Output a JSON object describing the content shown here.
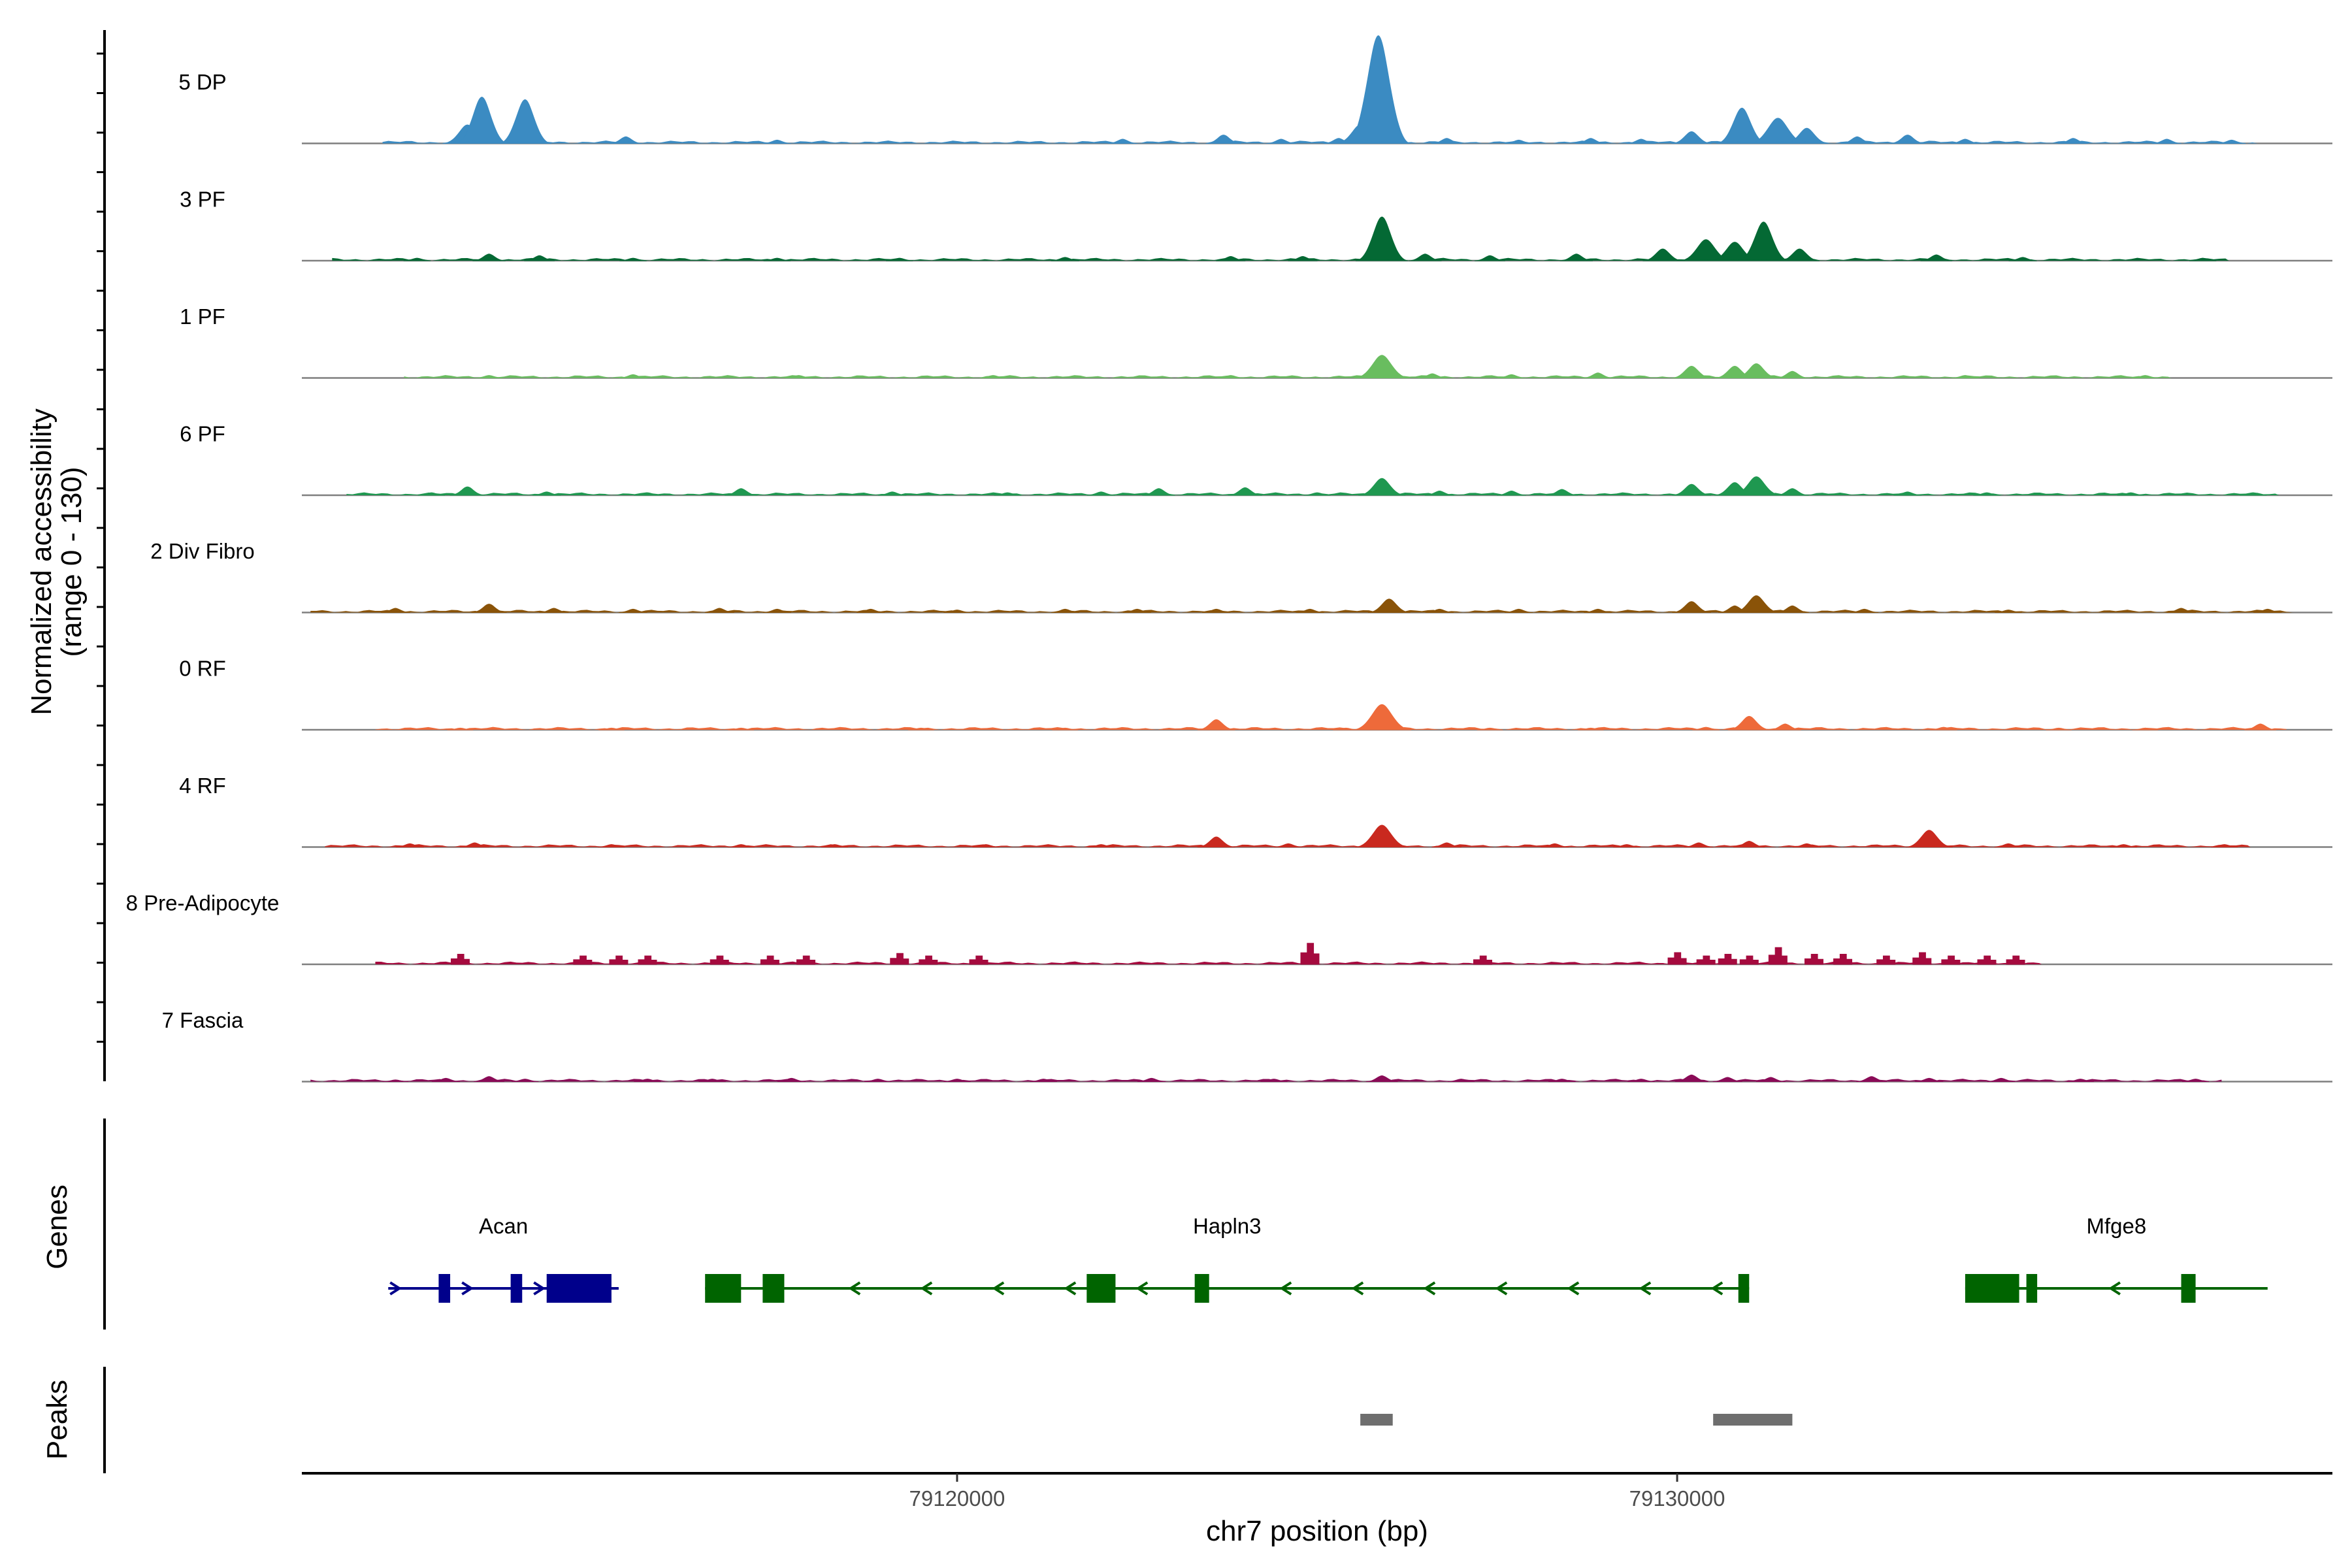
{
  "chart_data": {
    "type": "area",
    "title": "",
    "ylabel_line1": "Normalized accessibility",
    "ylabel_line2": "(range 0 - 130)",
    "y_range": [
      0,
      130
    ],
    "xlabel": "chr7 position (bp)",
    "x_range": [
      79110900,
      79139100
    ],
    "x_ticks": [
      {
        "value": 79120000,
        "label": "79120000"
      },
      {
        "value": 79130000,
        "label": "79130000"
      }
    ],
    "tracks": [
      {
        "name": "5 DP",
        "color": "#3b8bc2",
        "peaks": [
          [
            79113200,
            22
          ],
          [
            79113400,
            55
          ],
          [
            79114000,
            52
          ],
          [
            79115400,
            8
          ],
          [
            79117500,
            4
          ],
          [
            79122300,
            5
          ],
          [
            79123700,
            10
          ],
          [
            79124500,
            5
          ],
          [
            79125300,
            6
          ],
          [
            79125600,
            22
          ],
          [
            79125850,
            128
          ],
          [
            79126800,
            6
          ],
          [
            79127800,
            4
          ],
          [
            79128800,
            6
          ],
          [
            79129500,
            5
          ],
          [
            79130200,
            14
          ],
          [
            79130900,
            42
          ],
          [
            79131400,
            30
          ],
          [
            79131800,
            18
          ],
          [
            79132500,
            8
          ],
          [
            79133200,
            10
          ],
          [
            79134000,
            5
          ],
          [
            79135500,
            6
          ],
          [
            79136800,
            5
          ],
          [
            79137700,
            4
          ]
        ]
      },
      {
        "name": "3 PF",
        "color": "#046934",
        "peaks": [
          [
            79112500,
            3
          ],
          [
            79113500,
            8
          ],
          [
            79114200,
            6
          ],
          [
            79115500,
            3
          ],
          [
            79117500,
            3
          ],
          [
            79119200,
            3
          ],
          [
            79121500,
            4
          ],
          [
            79123800,
            5
          ],
          [
            79124800,
            5
          ],
          [
            79125900,
            52
          ],
          [
            79126500,
            8
          ],
          [
            79127400,
            6
          ],
          [
            79128600,
            8
          ],
          [
            79129800,
            14
          ],
          [
            79130400,
            25
          ],
          [
            79130800,
            22
          ],
          [
            79131200,
            46
          ],
          [
            79131700,
            14
          ],
          [
            79133600,
            7
          ],
          [
            79134800,
            4
          ],
          [
            79137300,
            3
          ]
        ]
      },
      {
        "name": "1 PF",
        "color": "#69bd5f",
        "peaks": [
          [
            79113500,
            3
          ],
          [
            79115500,
            4
          ],
          [
            79117800,
            3
          ],
          [
            79120500,
            3
          ],
          [
            79123800,
            3
          ],
          [
            79125900,
            27
          ],
          [
            79126600,
            5
          ],
          [
            79127700,
            4
          ],
          [
            79128900,
            6
          ],
          [
            79130200,
            14
          ],
          [
            79130800,
            14
          ],
          [
            79131100,
            17
          ],
          [
            79131600,
            8
          ],
          [
            79134000,
            3
          ],
          [
            79136500,
            3
          ]
        ]
      },
      {
        "name": "6 PF",
        "color": "#1f9850",
        "peaks": [
          [
            79112700,
            3
          ],
          [
            79113200,
            10
          ],
          [
            79114300,
            4
          ],
          [
            79115700,
            3
          ],
          [
            79117000,
            8
          ],
          [
            79119100,
            4
          ],
          [
            79120700,
            3
          ],
          [
            79122000,
            4
          ],
          [
            79122800,
            8
          ],
          [
            79124000,
            9
          ],
          [
            79125000,
            3
          ],
          [
            79125900,
            20
          ],
          [
            79126700,
            5
          ],
          [
            79127700,
            5
          ],
          [
            79128400,
            7
          ],
          [
            79130200,
            13
          ],
          [
            79130800,
            15
          ],
          [
            79131100,
            22
          ],
          [
            79131600,
            8
          ],
          [
            79133200,
            4
          ],
          [
            79134300,
            3
          ],
          [
            79136300,
            3
          ],
          [
            79138000,
            3
          ]
        ]
      },
      {
        "name": "2 Div Fibro",
        "color": "#8a5308",
        "peaks": [
          [
            79112200,
            5
          ],
          [
            79113500,
            10
          ],
          [
            79114400,
            5
          ],
          [
            79115500,
            4
          ],
          [
            79116700,
            5
          ],
          [
            79117500,
            4
          ],
          [
            79118800,
            4
          ],
          [
            79120000,
            3
          ],
          [
            79121500,
            4
          ],
          [
            79122500,
            4
          ],
          [
            79123600,
            4
          ],
          [
            79124900,
            4
          ],
          [
            79126000,
            16
          ],
          [
            79126700,
            4
          ],
          [
            79127800,
            4
          ],
          [
            79128900,
            4
          ],
          [
            79130200,
            13
          ],
          [
            79130800,
            8
          ],
          [
            79131100,
            20
          ],
          [
            79131600,
            8
          ],
          [
            79132600,
            4
          ],
          [
            79134600,
            3
          ],
          [
            79137000,
            5
          ],
          [
            79138200,
            4
          ]
        ]
      },
      {
        "name": "0 RF",
        "color": "#ee6a3a",
        "peaks": [
          [
            79113100,
            2
          ],
          [
            79115200,
            2
          ],
          [
            79117000,
            2
          ],
          [
            79119500,
            2
          ],
          [
            79121500,
            2
          ],
          [
            79123600,
            12
          ],
          [
            79125400,
            2
          ],
          [
            79125900,
            30
          ],
          [
            79127400,
            2
          ],
          [
            79128800,
            2
          ],
          [
            79130400,
            3
          ],
          [
            79131000,
            16
          ],
          [
            79131500,
            7
          ],
          [
            79133700,
            3
          ],
          [
            79135300,
            2
          ],
          [
            79136500,
            2
          ],
          [
            79138100,
            7
          ]
        ]
      },
      {
        "name": "4 RF",
        "color": "#c9291f",
        "peaks": [
          [
            79112400,
            4
          ],
          [
            79113300,
            5
          ],
          [
            79115200,
            3
          ],
          [
            79117000,
            3
          ],
          [
            79118300,
            3
          ],
          [
            79120400,
            3
          ],
          [
            79122000,
            3
          ],
          [
            79123600,
            12
          ],
          [
            79124600,
            4
          ],
          [
            79125900,
            26
          ],
          [
            79126800,
            5
          ],
          [
            79128300,
            4
          ],
          [
            79129300,
            3
          ],
          [
            79130300,
            5
          ],
          [
            79131000,
            7
          ],
          [
            79131800,
            4
          ],
          [
            79133500,
            20
          ],
          [
            79134600,
            4
          ],
          [
            79136200,
            3
          ],
          [
            79137600,
            3
          ]
        ]
      },
      {
        "name": "8 Pre-Adipocyte",
        "color": "#a50a3e",
        "blocky": true,
        "peaks": [
          [
            79113100,
            12
          ],
          [
            79114800,
            10
          ],
          [
            79115300,
            10
          ],
          [
            79115700,
            10
          ],
          [
            79116700,
            10
          ],
          [
            79117400,
            10
          ],
          [
            79117900,
            10
          ],
          [
            79119200,
            13
          ],
          [
            79119600,
            10
          ],
          [
            79120300,
            10
          ],
          [
            79124900,
            25
          ],
          [
            79127300,
            10
          ],
          [
            79130000,
            14
          ],
          [
            79130400,
            10
          ],
          [
            79130700,
            12
          ],
          [
            79131000,
            10
          ],
          [
            79131400,
            20
          ],
          [
            79131900,
            12
          ],
          [
            79132300,
            12
          ],
          [
            79132900,
            10
          ],
          [
            79133400,
            14
          ],
          [
            79133800,
            10
          ],
          [
            79134300,
            10
          ],
          [
            79134700,
            10
          ]
        ]
      },
      {
        "name": "7 Fascia",
        "color": "#8a0b57",
        "peaks": [
          [
            79112200,
            2
          ],
          [
            79112900,
            4
          ],
          [
            79113500,
            6
          ],
          [
            79114000,
            3
          ],
          [
            79115700,
            3
          ],
          [
            79116600,
            3
          ],
          [
            79117700,
            4
          ],
          [
            79118900,
            3
          ],
          [
            79120000,
            3
          ],
          [
            79121200,
            3
          ],
          [
            79122700,
            4
          ],
          [
            79124400,
            3
          ],
          [
            79125900,
            7
          ],
          [
            79127000,
            3
          ],
          [
            79128400,
            3
          ],
          [
            79129500,
            3
          ],
          [
            79130200,
            8
          ],
          [
            79130700,
            5
          ],
          [
            79131300,
            5
          ],
          [
            79132700,
            6
          ],
          [
            79133500,
            4
          ],
          [
            79134500,
            4
          ],
          [
            79135600,
            3
          ],
          [
            79137200,
            3
          ]
        ]
      }
    ],
    "genes_label": "Genes",
    "genes": [
      {
        "name": "Acan",
        "color": "#00008b",
        "strand": "+",
        "start": 79112100,
        "end": 79115300,
        "exons": [
          [
            79112800,
            79112960
          ],
          [
            79113800,
            79113960
          ],
          [
            79114300,
            79115200
          ]
        ]
      },
      {
        "name": "Hapln3",
        "color": "#006400",
        "strand": "-",
        "start": 79116500,
        "end": 79131000,
        "exons": [
          [
            79116500,
            79117000
          ],
          [
            79117300,
            79117600
          ],
          [
            79121800,
            79122200
          ],
          [
            79123300,
            79123500
          ],
          [
            79130850,
            79131000
          ]
        ]
      },
      {
        "name": "Mfge8",
        "color": "#006400",
        "strand": "-",
        "start": 79134000,
        "end": 79138200,
        "exons": [
          [
            79134000,
            79134750
          ],
          [
            79134850,
            79135000
          ],
          [
            79137000,
            79137200
          ]
        ]
      }
    ],
    "peaks_label": "Peaks",
    "peaks_color": "#6e6e6e",
    "peak_regions": [
      [
        79125600,
        79126050
      ],
      [
        79130500,
        79131600
      ]
    ]
  }
}
